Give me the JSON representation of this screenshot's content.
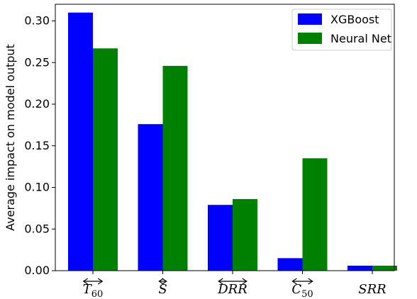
{
  "chart_data": {
    "type": "bar",
    "categories": [
      {
        "base": "T",
        "sub": "60",
        "arrow": true
      },
      {
        "base": "S",
        "sub": "",
        "arrow": true
      },
      {
        "base": "DRR",
        "sub": "",
        "arrow": true
      },
      {
        "base": "C",
        "sub": "50",
        "arrow": true
      },
      {
        "base": "SRR",
        "sub": "",
        "arrow": false
      }
    ],
    "series": [
      {
        "name": "XGBoost",
        "color": "#0000ff",
        "values": [
          0.31,
          0.176,
          0.079,
          0.015,
          0.006
        ]
      },
      {
        "name": "Neural Net",
        "color": "#008000",
        "values": [
          0.267,
          0.246,
          0.086,
          0.135,
          0.006
        ]
      }
    ],
    "title": "",
    "xlabel": "",
    "ylabel": "Average impact on model output",
    "ylim": [
      0,
      0.32
    ],
    "yticks": [
      "0.00",
      "0.05",
      "0.10",
      "0.15",
      "0.20",
      "0.25",
      "0.30"
    ],
    "legend_position": "top-right",
    "grid": false
  }
}
